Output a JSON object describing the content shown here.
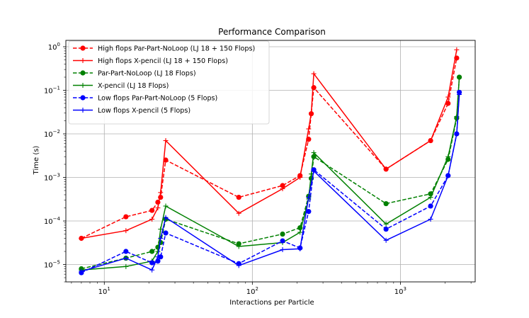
{
  "chart_data": {
    "type": "line",
    "title": "Performance Comparison",
    "xlabel": "Interactions per Particle",
    "ylabel": "Time (s)",
    "x_scale": "log",
    "y_scale": "log",
    "xlim": [
      5.5,
      3200
    ],
    "ylim": [
      4e-06,
      1.4
    ],
    "grid": true,
    "legend_position": "top-left",
    "x_ticks": [
      {
        "value": 10,
        "base": "10",
        "exp": "1"
      },
      {
        "value": 100,
        "base": "10",
        "exp": "2"
      },
      {
        "value": 1000,
        "base": "10",
        "exp": "3"
      }
    ],
    "y_ticks": [
      {
        "value": 1e-05,
        "base": "10",
        "exp": "−5"
      },
      {
        "value": 0.0001,
        "base": "10",
        "exp": "−4"
      },
      {
        "value": 0.001,
        "base": "10",
        "exp": "−3"
      },
      {
        "value": 0.01,
        "base": "10",
        "exp": "−2"
      },
      {
        "value": 0.1,
        "base": "10",
        "exp": "−1"
      },
      {
        "value": 1,
        "base": "10",
        "exp": "0"
      }
    ],
    "series": [
      {
        "name": "High flops Par-Part-NoLoop (LJ 18 + 150 Flops)",
        "color": "#ff0000",
        "dash": "dashed",
        "marker": "circle",
        "x": [
          7,
          14,
          21,
          23,
          24,
          26,
          81,
          160,
          210,
          240,
          250,
          260,
          800,
          1600,
          2100,
          2400
        ],
        "y": [
          4e-05,
          0.000125,
          0.000175,
          0.00027,
          0.00035,
          0.0025,
          0.00035,
          0.00065,
          0.0011,
          0.0075,
          0.029,
          0.115,
          0.00155,
          0.007,
          0.05,
          0.55
        ]
      },
      {
        "name": "High flops X-pencil (LJ 18 + 150 Flops)",
        "color": "#ff0000",
        "dash": "solid",
        "marker": "plus",
        "x": [
          7,
          14,
          21,
          23,
          24,
          26,
          81,
          160,
          210,
          240,
          250,
          260,
          800,
          1600,
          2100,
          2400
        ],
        "y": [
          4e-05,
          6e-05,
          0.00011,
          0.0002,
          0.00045,
          0.007,
          0.00015,
          0.00055,
          0.001,
          0.013,
          0.03,
          0.24,
          0.00155,
          0.007,
          0.07,
          0.85
        ]
      },
      {
        "name": "Par-Part-NoLoop (LJ 18 Flops)",
        "color": "#008000",
        "dash": "dashed",
        "marker": "circle",
        "x": [
          7,
          14,
          21,
          23,
          24,
          26,
          81,
          160,
          210,
          240,
          250,
          260,
          800,
          1600,
          2100,
          2400,
          2500
        ],
        "y": [
          8e-06,
          1.4e-05,
          2e-05,
          2.5e-05,
          3.2e-05,
          0.00011,
          3e-05,
          5e-05,
          7e-05,
          0.00037,
          0.00095,
          0.003,
          0.00025,
          0.00042,
          0.0026,
          0.023,
          0.2
        ]
      },
      {
        "name": "X-pencil (LJ 18 Flops)",
        "color": "#008000",
        "dash": "solid",
        "marker": "plus",
        "x": [
          7,
          14,
          21,
          23,
          24,
          26,
          81,
          160,
          210,
          240,
          250,
          260,
          800,
          1600,
          2100,
          2400,
          2500
        ],
        "y": [
          7.5e-06,
          9e-06,
          1.2e-05,
          2e-05,
          6.5e-05,
          0.00022,
          2.6e-05,
          3.2e-05,
          5.5e-05,
          0.00032,
          0.0012,
          0.0037,
          8.5e-05,
          0.00035,
          0.003,
          0.025,
          0.2
        ]
      },
      {
        "name": "Low flops Par-Part-NoLoop (5 Flops)",
        "color": "#0000ff",
        "dash": "dashed",
        "marker": "circle",
        "x": [
          7,
          14,
          21,
          23,
          24,
          26,
          81,
          160,
          210,
          240,
          260,
          800,
          1600,
          2100,
          2400,
          2500
        ],
        "y": [
          6.5e-06,
          2e-05,
          1.1e-05,
          1.2e-05,
          1.5e-05,
          5.3e-05,
          1.05e-05,
          3.5e-05,
          2.4e-05,
          0.000165,
          0.0015,
          6.5e-05,
          0.00022,
          0.0011,
          0.01,
          0.09
        ]
      },
      {
        "name": "Low flops X-pencil (5 Flops)",
        "color": "#0000ff",
        "dash": "solid",
        "marker": "plus",
        "x": [
          7,
          14,
          21,
          23,
          24,
          26,
          81,
          160,
          210,
          240,
          260,
          800,
          1600,
          2100,
          2400,
          2500
        ],
        "y": [
          7e-06,
          1.4e-05,
          7.5e-06,
          1.5e-05,
          4e-05,
          0.00012,
          9.5e-06,
          2.2e-05,
          2.3e-05,
          0.00035,
          0.0014,
          3.6e-05,
          0.00011,
          0.0011,
          0.01,
          0.08
        ]
      }
    ]
  }
}
